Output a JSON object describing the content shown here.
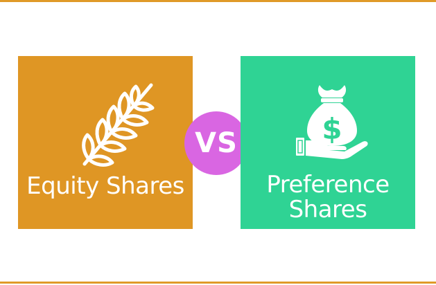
{
  "colors": {
    "rule": "#e09a28",
    "equity_panel": "#df9624",
    "preference_panel": "#2fd394",
    "vs_badge": "#d966e2",
    "icon": "#ffffff"
  },
  "equity": {
    "label": "Equity Shares",
    "icon": "wheat-icon"
  },
  "vs": {
    "label": "VS"
  },
  "preference": {
    "label_line1": "Preference",
    "label_line2": "Shares",
    "icon": "money-bag-hand-icon"
  }
}
